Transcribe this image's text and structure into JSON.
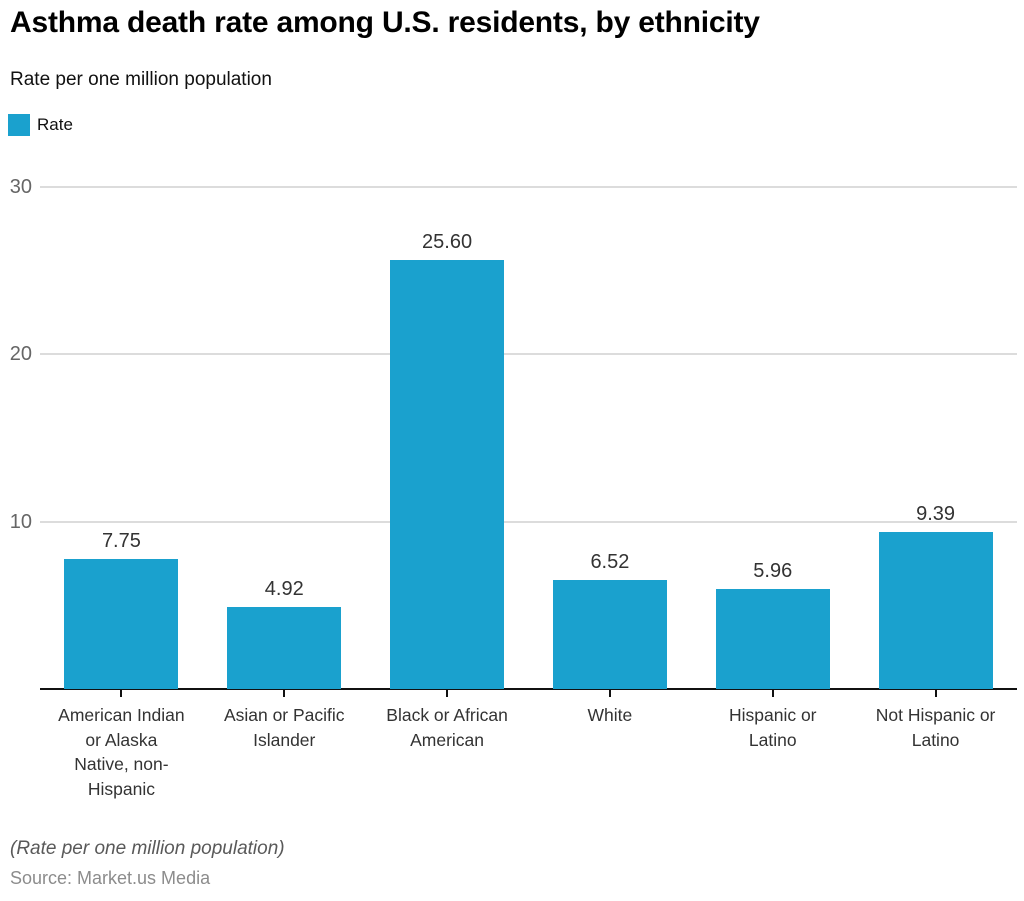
{
  "header": {
    "title": "Asthma death rate among U.S. residents, by ethnicity",
    "subtitle": "Rate per one million population"
  },
  "legend": {
    "label": "Rate",
    "swatch_color": "#1aa1ce"
  },
  "chart_data": {
    "type": "bar",
    "title": "Asthma death rate among U.S. residents, by ethnicity",
    "subtitle": "Rate per one million population",
    "categories": [
      "American Indian or Alaska Native, non-Hispanic",
      "Asian or Pacific Islander",
      "Black or African American",
      "White",
      "Hispanic or Latino",
      "Not Hispanic or Latino"
    ],
    "category_display_lines": [
      [
        "American Indian",
        "or Alaska",
        "Native, non-",
        "Hispanic"
      ],
      [
        "Asian or Pacific",
        "Islander"
      ],
      [
        "Black or African",
        "American"
      ],
      [
        "White"
      ],
      [
        "Hispanic or",
        "Latino"
      ],
      [
        "Not Hispanic or",
        "Latino"
      ]
    ],
    "series": [
      {
        "name": "Rate",
        "values": [
          7.75,
          4.92,
          25.6,
          6.52,
          5.96,
          9.39
        ],
        "color": "#1aa1ce"
      }
    ],
    "value_labels": [
      "7.75",
      "4.92",
      "25.60",
      "6.52",
      "5.96",
      "9.39"
    ],
    "xlabel": "",
    "ylabel": "",
    "ylim": [
      0,
      30
    ],
    "yticks": [
      10,
      20,
      30
    ],
    "grid": true,
    "legend_position": "top-left"
  },
  "footer": {
    "note": "(Rate per one million population)",
    "source": "Source: Market.us Media"
  },
  "colors": {
    "bar": "#1aa1ce",
    "gridline": "#dcdcdc",
    "axis_line": "#111111",
    "y_tick_text": "#666666",
    "value_label_text": "#333333",
    "x_label_text": "#333333"
  }
}
